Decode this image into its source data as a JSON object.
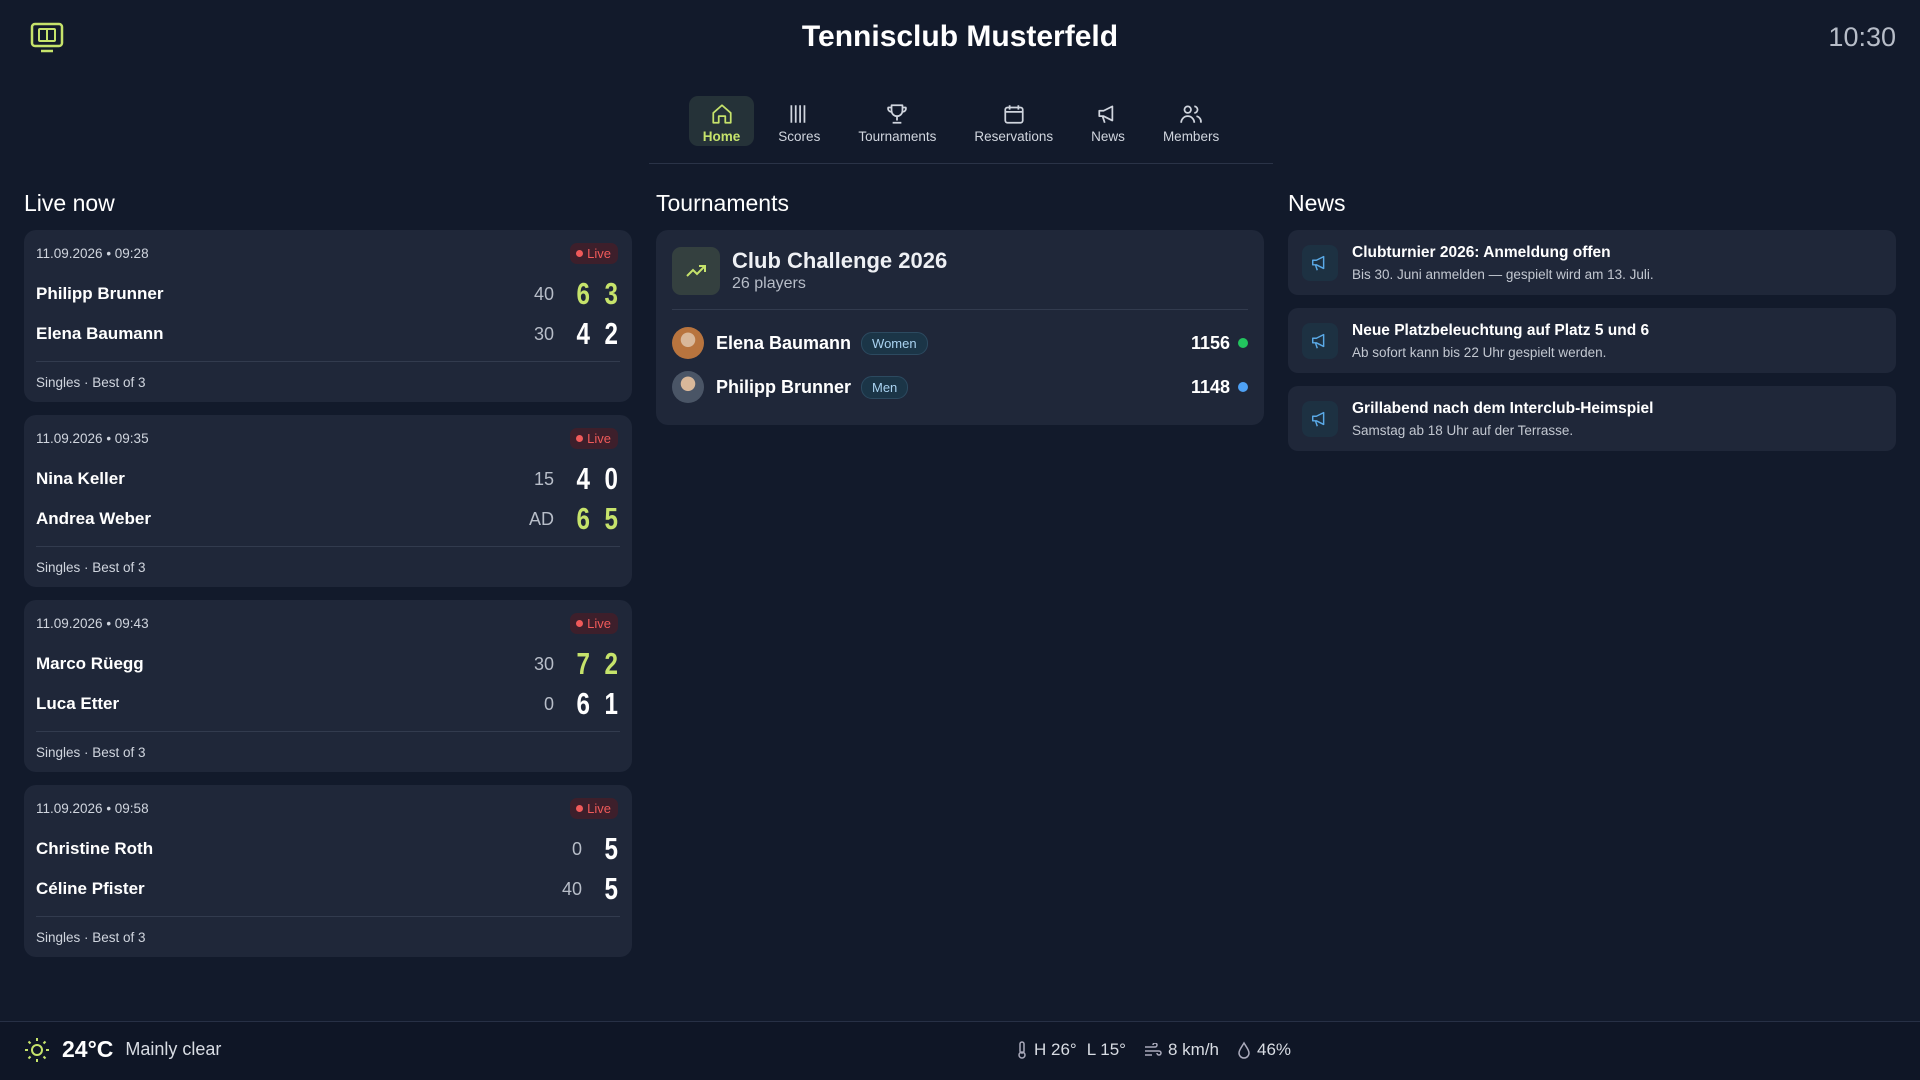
{
  "header": {
    "title": "Tennisclub Musterfeld",
    "time": "10:30"
  },
  "nav": [
    {
      "label": "Home",
      "active": true
    },
    {
      "label": "Scores",
      "active": false
    },
    {
      "label": "Tournaments",
      "active": false
    },
    {
      "label": "Reservations",
      "active": false
    },
    {
      "label": "News",
      "active": false
    },
    {
      "label": "Members",
      "active": false
    }
  ],
  "live": {
    "title": "Live now",
    "matches": [
      {
        "datetime": "11.09.2026 • 09:28",
        "badge": "Live",
        "format": "Singles · Best of 3",
        "players": [
          {
            "name": "Philipp Brunner",
            "point": "40",
            "sets": [
              6,
              3
            ],
            "leading": true
          },
          {
            "name": "Elena Baumann",
            "point": "30",
            "sets": [
              4,
              2
            ],
            "leading": false
          }
        ]
      },
      {
        "datetime": "11.09.2026 • 09:35",
        "badge": "Live",
        "format": "Singles · Best of 3",
        "players": [
          {
            "name": "Nina Keller",
            "point": "15",
            "sets": [
              4,
              0
            ],
            "leading": false
          },
          {
            "name": "Andrea Weber",
            "point": "AD",
            "sets": [
              6,
              5
            ],
            "leading": true
          }
        ]
      },
      {
        "datetime": "11.09.2026 • 09:43",
        "badge": "Live",
        "format": "Singles · Best of 3",
        "players": [
          {
            "name": "Marco Rüegg",
            "point": "30",
            "sets": [
              7,
              2
            ],
            "leading": true
          },
          {
            "name": "Luca Etter",
            "point": "0",
            "sets": [
              6,
              1
            ],
            "leading": false
          }
        ]
      },
      {
        "datetime": "11.09.2026 • 09:58",
        "badge": "Live",
        "format": "Singles · Best of 3",
        "players": [
          {
            "name": "Christine Roth",
            "point": "0",
            "sets": [
              5
            ],
            "leading": false
          },
          {
            "name": "Céline Pfister",
            "point": "40",
            "sets": [
              5
            ],
            "leading": false
          }
        ]
      }
    ]
  },
  "tournaments": {
    "title": "Tournaments",
    "items": [
      {
        "name": "Club Challenge 2026",
        "players": "26 players",
        "entries": [
          {
            "name": "Elena Baumann",
            "category": "Women",
            "rating": 1156,
            "color": "#22c55e"
          },
          {
            "name": "Philipp Brunner",
            "category": "Men",
            "rating": 1148,
            "color": "#4ea1f5"
          }
        ]
      }
    ]
  },
  "news": {
    "title": "News",
    "items": [
      {
        "title": "Clubturnier 2026: Anmeldung offen",
        "text": "Bis 30. Juni anmelden — gespielt wird am 13. Juli."
      },
      {
        "title": "Neue Platzbeleuchtung auf Platz 5 und 6",
        "text": "Ab sofort kann bis 22 Uhr gespielt werden."
      },
      {
        "title": "Grillabend nach dem Interclub-Heimspiel",
        "text": "Samstag ab 18 Uhr auf der Terrasse."
      }
    ]
  },
  "weather": {
    "temperature": "24°C",
    "condition": "Mainly clear",
    "high": "H 26°",
    "low": "L 15°",
    "wind": "8 km/h",
    "humidity": "46%"
  }
}
